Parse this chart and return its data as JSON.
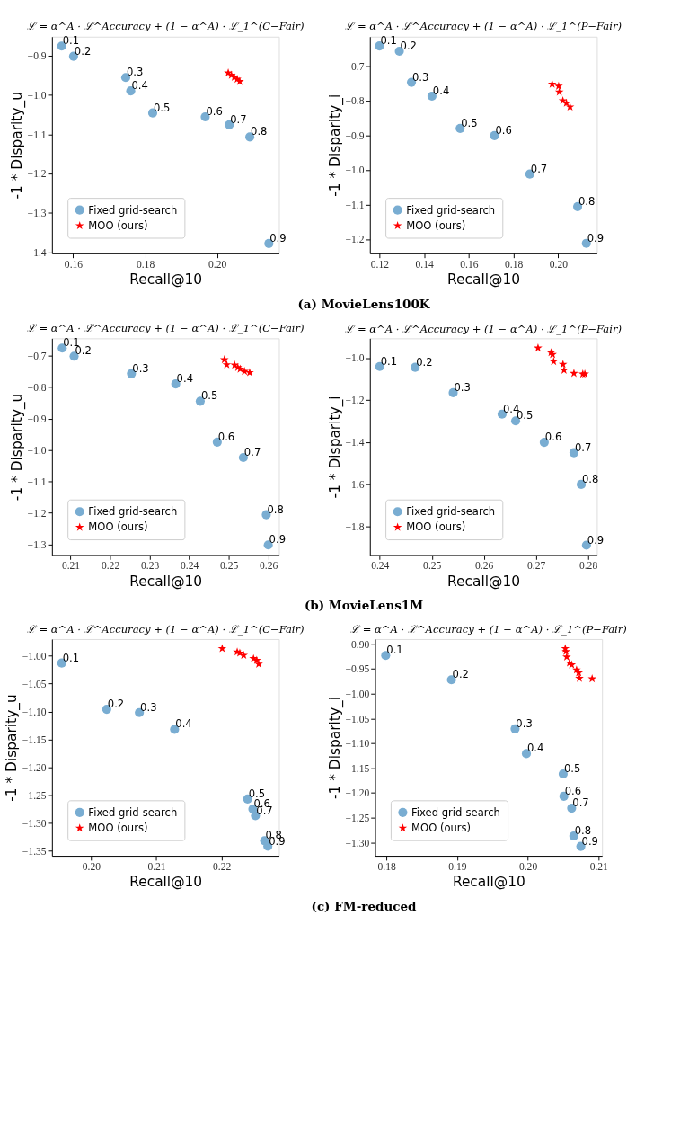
{
  "chart_data": [
    {
      "type": "scatter",
      "title": "ℒ = α^A · ℒ^Accuracy + (1 − α^A) · ℒ_1^(C−Fair)",
      "xlabel": "Recall@10",
      "ylabel": "-1 * Disparity_u",
      "legend": "bottom left",
      "grid": false,
      "xlim": [
        0.1541,
        0.2172
      ],
      "ylim": [
        -1.403,
        -0.852
      ],
      "xticks": [
        {
          "value": 0.16,
          "label": "0.16"
        },
        {
          "value": 0.18,
          "label": "0.18"
        },
        {
          "value": 0.2,
          "label": "0.20"
        }
      ],
      "yticks": [
        {
          "value": -0.9,
          "label": "−0.9"
        },
        {
          "value": -1.0,
          "label": "−1.0"
        },
        {
          "value": -1.1,
          "label": "−1.1"
        },
        {
          "value": -1.2,
          "label": "−1.2"
        },
        {
          "value": -1.3,
          "label": "−1.3"
        },
        {
          "value": -1.4,
          "label": "−1.4"
        }
      ],
      "series": [
        {
          "name": "Fixed grid-search",
          "color": "#79add2",
          "marker": "circle",
          "x": [
            0.1568,
            0.1601,
            0.1746,
            0.176,
            0.1821,
            0.1967,
            0.2034,
            0.2091,
            0.2144
          ],
          "values": [
            -0.876,
            -0.902,
            -0.956,
            -0.99,
            -1.046,
            -1.056,
            -1.076,
            -1.107,
            -1.378
          ]
        },
        {
          "name": "MOO (ours)",
          "color": "#ff0000",
          "marker": "star",
          "x": [
            0.2031,
            0.204,
            0.2048,
            0.2056,
            0.2063
          ],
          "values": [
            -0.944,
            -0.95,
            -0.955,
            -0.96,
            -0.966
          ]
        }
      ],
      "annotations": [
        {
          "text": "0.1",
          "x": 0.1568,
          "y": -0.876
        },
        {
          "text": "0.2",
          "x": 0.1601,
          "y": -0.902
        },
        {
          "text": "0.3",
          "x": 0.1746,
          "y": -0.956
        },
        {
          "text": "0.4",
          "x": 0.176,
          "y": -0.99
        },
        {
          "text": "0.5",
          "x": 0.1821,
          "y": -1.046
        },
        {
          "text": "0.6",
          "x": 0.1967,
          "y": -1.056
        },
        {
          "text": "0.7",
          "x": 0.2034,
          "y": -1.076
        },
        {
          "text": "0.8",
          "x": 0.2091,
          "y": -1.107
        },
        {
          "text": "0.9",
          "x": 0.2144,
          "y": -1.378
        },
        "(a) MovieLens100K"
      ]
    },
    {
      "type": "scatter",
      "title": "ℒ = α^A · ℒ^Accuracy + (1 − α^A) · ℒ_1^(P−Fair)",
      "xlabel": "Recall@10",
      "ylabel": "-1 * Disparity_i",
      "legend": "bottom left",
      "grid": false,
      "xlim": [
        0.1157,
        0.2173
      ],
      "ylim": [
        -1.241,
        -0.615
      ],
      "xticks": [
        {
          "value": 0.12,
          "label": "0.12"
        },
        {
          "value": 0.14,
          "label": "0.14"
        },
        {
          "value": 0.16,
          "label": "0.16"
        },
        {
          "value": 0.18,
          "label": "0.18"
        },
        {
          "value": 0.2,
          "label": "0.20"
        }
      ],
      "yticks": [
        {
          "value": -0.7,
          "label": "−0.7"
        },
        {
          "value": -0.8,
          "label": "−0.8"
        },
        {
          "value": -0.9,
          "label": "−0.9"
        },
        {
          "value": -1.0,
          "label": "−1.0"
        },
        {
          "value": -1.1,
          "label": "−1.1"
        },
        {
          "value": -1.2,
          "label": "−1.2"
        }
      ],
      "series": [
        {
          "name": "Fixed grid-search",
          "color": "#79add2",
          "marker": "circle",
          "x": [
            0.12,
            0.1289,
            0.1343,
            0.1435,
            0.1561,
            0.1715,
            0.1873,
            0.2087,
            0.2126
          ],
          "values": [
            -0.642,
            -0.657,
            -0.747,
            -0.787,
            -0.88,
            -0.901,
            -1.012,
            -1.106,
            -1.212
          ]
        },
        {
          "name": "MOO (ours)",
          "color": "#ff0000",
          "marker": "star",
          "x": [
            0.1973,
            0.2002,
            0.2005,
            0.2021,
            0.2037,
            0.2053
          ],
          "values": [
            -0.752,
            -0.758,
            -0.775,
            -0.8,
            -0.807,
            -0.818
          ]
        }
      ],
      "annotations": [
        {
          "text": "0.1",
          "x": 0.12,
          "y": -0.642
        },
        {
          "text": "0.2",
          "x": 0.1289,
          "y": -0.657
        },
        {
          "text": "0.3",
          "x": 0.1343,
          "y": -0.747
        },
        {
          "text": "0.4",
          "x": 0.1435,
          "y": -0.787
        },
        {
          "text": "0.5",
          "x": 0.1561,
          "y": -0.88
        },
        {
          "text": "0.6",
          "x": 0.1715,
          "y": -0.901
        },
        {
          "text": "0.7",
          "x": 0.1873,
          "y": -1.012
        },
        {
          "text": "0.8",
          "x": 0.2087,
          "y": -1.106
        },
        {
          "text": "0.9",
          "x": 0.2126,
          "y": -1.212
        }
      ]
    },
    {
      "type": "scatter",
      "title": "ℒ = α^A · ℒ^Accuracy + (1 − α^A) · ℒ_1^(C−Fair)",
      "xlabel": "Recall@10",
      "ylabel": "-1 * Disparity_u",
      "legend": "bottom left",
      "grid": false,
      "xlim": [
        0.2053,
        0.2627
      ],
      "ylim": [
        -1.334,
        -0.645
      ],
      "xticks": [
        {
          "value": 0.21,
          "label": "0.21"
        },
        {
          "value": 0.22,
          "label": "0.22"
        },
        {
          "value": 0.23,
          "label": "0.23"
        },
        {
          "value": 0.24,
          "label": "0.24"
        },
        {
          "value": 0.25,
          "label": "0.25"
        },
        {
          "value": 0.26,
          "label": "0.26"
        }
      ],
      "yticks": [
        {
          "value": -0.7,
          "label": "−0.7"
        },
        {
          "value": -0.8,
          "label": "−0.8"
        },
        {
          "value": -0.9,
          "label": "−0.9"
        },
        {
          "value": -1.0,
          "label": "−1.0"
        },
        {
          "value": -1.1,
          "label": "−1.1"
        },
        {
          "value": -1.2,
          "label": "−1.2"
        },
        {
          "value": -1.3,
          "label": "−1.3"
        }
      ],
      "series": [
        {
          "name": "Fixed grid-search",
          "color": "#79add2",
          "marker": "circle",
          "x": [
            0.2079,
            0.2109,
            0.2254,
            0.2366,
            0.2428,
            0.2471,
            0.2537,
            0.2595,
            0.26
          ],
          "values": [
            -0.676,
            -0.702,
            -0.757,
            -0.79,
            -0.845,
            -0.975,
            -1.024,
            -1.206,
            -1.302
          ]
        },
        {
          "name": "MOO (ours)",
          "color": "#ff0000",
          "marker": "star",
          "x": [
            0.2489,
            0.2495,
            0.2515,
            0.2523,
            0.2529,
            0.254,
            0.2553
          ],
          "values": [
            -0.713,
            -0.729,
            -0.73,
            -0.738,
            -0.743,
            -0.75,
            -0.754
          ]
        }
      ],
      "annotations": [
        {
          "text": "0.1",
          "x": 0.2079,
          "y": -0.676
        },
        {
          "text": "0.2",
          "x": 0.2109,
          "y": -0.702
        },
        {
          "text": "0.3",
          "x": 0.2254,
          "y": -0.757
        },
        {
          "text": "0.4",
          "x": 0.2366,
          "y": -0.79
        },
        {
          "text": "0.5",
          "x": 0.2428,
          "y": -0.845
        },
        {
          "text": "0.6",
          "x": 0.2471,
          "y": -0.975
        },
        {
          "text": "0.7",
          "x": 0.2537,
          "y": -1.024
        },
        {
          "text": "0.8",
          "x": 0.2595,
          "y": -1.206
        },
        {
          "text": "0.9",
          "x": 0.26,
          "y": -1.302
        },
        "(b) MovieLens1M"
      ]
    },
    {
      "type": "scatter",
      "title": "ℒ = α^A · ℒ^Accuracy + (1 − α^A) · ℒ_1^(P−Fair)",
      "xlabel": "Recall@10",
      "ylabel": "-1 * Disparity_i",
      "legend": "bottom left",
      "grid": false,
      "xlim": [
        0.2381,
        0.2817
      ],
      "ylim": [
        -1.938,
        -0.907
      ],
      "xticks": [
        {
          "value": 0.24,
          "label": "0.24"
        },
        {
          "value": 0.25,
          "label": "0.25"
        },
        {
          "value": 0.26,
          "label": "0.26"
        },
        {
          "value": 0.27,
          "label": "0.27"
        },
        {
          "value": 0.28,
          "label": "0.28"
        }
      ],
      "yticks": [
        {
          "value": -1.0,
          "label": "−1.0"
        },
        {
          "value": -1.2,
          "label": "−1.2"
        },
        {
          "value": -1.4,
          "label": "−1.4"
        },
        {
          "value": -1.6,
          "label": "−1.6"
        },
        {
          "value": -1.8,
          "label": "−1.8"
        }
      ],
      "series": [
        {
          "name": "Fixed grid-search",
          "color": "#79add2",
          "marker": "circle",
          "x": [
            0.24,
            0.2468,
            0.2541,
            0.2635,
            0.2661,
            0.2716,
            0.2773,
            0.2787,
            0.2797
          ],
          "values": [
            -1.041,
            -1.045,
            -1.166,
            -1.268,
            -1.3,
            -1.402,
            -1.451,
            -1.602,
            -1.891
          ]
        },
        {
          "name": "MOO (ours)",
          "color": "#ff0000",
          "marker": "star",
          "x": [
            0.2704,
            0.2729,
            0.2732,
            0.2734,
            0.2752,
            0.2754,
            0.2773,
            0.279,
            0.2794
          ],
          "values": [
            -0.953,
            -0.975,
            -0.984,
            -1.017,
            -1.031,
            -1.059,
            -1.074,
            -1.077,
            -1.077
          ]
        }
      ],
      "annotations": [
        {
          "text": "0.1",
          "x": 0.24,
          "y": -1.041
        },
        {
          "text": "0.2",
          "x": 0.2468,
          "y": -1.045
        },
        {
          "text": "0.3",
          "x": 0.2541,
          "y": -1.166
        },
        {
          "text": "0.4",
          "x": 0.2635,
          "y": -1.268
        },
        {
          "text": "0.5",
          "x": 0.2661,
          "y": -1.3
        },
        {
          "text": "0.6",
          "x": 0.2716,
          "y": -1.402
        },
        {
          "text": "0.7",
          "x": 0.2773,
          "y": -1.451
        },
        {
          "text": "0.8",
          "x": 0.2787,
          "y": -1.602
        },
        {
          "text": "0.9",
          "x": 0.2797,
          "y": -1.891
        }
      ]
    },
    {
      "type": "scatter",
      "title": "ℒ = α^A · ℒ^Accuracy + (1 − α^A) · ℒ_1^(C−Fair)",
      "xlabel": "Recall@10",
      "ylabel": "-1 * Disparity_u",
      "legend": "bottom left",
      "grid": false,
      "xlim": [
        0.194,
        0.2288
      ],
      "ylim": [
        -1.359,
        -0.97
      ],
      "xticks": [
        {
          "value": 0.2,
          "label": "0.20"
        },
        {
          "value": 0.21,
          "label": "0.21"
        },
        {
          "value": 0.22,
          "label": "0.22"
        }
      ],
      "yticks": [
        {
          "value": -1.0,
          "label": "−1.00"
        },
        {
          "value": -1.05,
          "label": "−1.05"
        },
        {
          "value": -1.1,
          "label": "−1.10"
        },
        {
          "value": -1.15,
          "label": "−1.15"
        },
        {
          "value": -1.2,
          "label": "−1.20"
        },
        {
          "value": -1.25,
          "label": "−1.25"
        },
        {
          "value": -1.3,
          "label": "−1.30"
        },
        {
          "value": -1.35,
          "label": "−1.35"
        }
      ],
      "series": [
        {
          "name": "Fixed grid-search",
          "color": "#79add2",
          "marker": "circle",
          "x": [
            0.1955,
            0.2024,
            0.2074,
            0.2128,
            0.224,
            0.2248,
            0.2252,
            0.2266,
            0.2271
          ],
          "values": [
            -1.013,
            -1.096,
            -1.102,
            -1.132,
            -1.257,
            -1.275,
            -1.287,
            -1.332,
            -1.342
          ]
        },
        {
          "name": "MOO (ours)",
          "color": "#ff0000",
          "marker": "star",
          "x": [
            0.2201,
            0.2224,
            0.2228,
            0.2234,
            0.2249,
            0.2254,
            0.2257
          ],
          "values": [
            -0.987,
            -0.993,
            -0.995,
            -0.999,
            -1.005,
            -1.008,
            -1.015
          ]
        }
      ],
      "annotations": [
        {
          "text": "0.1",
          "x": 0.1955,
          "y": -1.013
        },
        {
          "text": "0.2",
          "x": 0.2024,
          "y": -1.096
        },
        {
          "text": "0.3",
          "x": 0.2074,
          "y": -1.102
        },
        {
          "text": "0.4",
          "x": 0.2128,
          "y": -1.132
        },
        {
          "text": "0.5",
          "x": 0.224,
          "y": -1.257
        },
        {
          "text": "0.6",
          "x": 0.2248,
          "y": -1.275
        },
        {
          "text": "0.7",
          "x": 0.2252,
          "y": -1.287
        },
        {
          "text": "0.8",
          "x": 0.2266,
          "y": -1.332
        },
        {
          "text": "0.9",
          "x": 0.2271,
          "y": -1.342
        },
        "(c) FM-reduced"
      ]
    },
    {
      "type": "scatter",
      "title": "ℒ = α^A · ℒ^Accuracy + (1 − α^A) · ℒ_1^(P−Fair)",
      "xlabel": "Recall@10",
      "ylabel": "-1 * Disparity_i",
      "legend": "bottom left",
      "grid": false,
      "xlim": [
        0.1784,
        0.2105
      ],
      "ylim": [
        -1.327,
        -0.89
      ],
      "xticks": [
        {
          "value": 0.18,
          "label": "0.18"
        },
        {
          "value": 0.19,
          "label": "0.19"
        },
        {
          "value": 0.2,
          "label": "0.20"
        },
        {
          "value": 0.21,
          "label": "0.21"
        }
      ],
      "yticks": [
        {
          "value": -0.9,
          "label": "−0.90"
        },
        {
          "value": -0.95,
          "label": "−0.95"
        },
        {
          "value": -1.0,
          "label": "−1.00"
        },
        {
          "value": -1.05,
          "label": "−1.05"
        },
        {
          "value": -1.1,
          "label": "−1.10"
        },
        {
          "value": -1.15,
          "label": "−1.15"
        },
        {
          "value": -1.2,
          "label": "−1.20"
        },
        {
          "value": -1.25,
          "label": "−1.25"
        },
        {
          "value": -1.3,
          "label": "−1.30"
        }
      ],
      "series": [
        {
          "name": "Fixed grid-search",
          "color": "#79add2",
          "marker": "circle",
          "x": [
            0.1799,
            0.1892,
            0.1982,
            0.1998,
            0.205,
            0.2051,
            0.2062,
            0.2065,
            0.2075
          ],
          "values": [
            -0.923,
            -0.972,
            -1.071,
            -1.121,
            -1.162,
            -1.207,
            -1.231,
            -1.287,
            -1.308
          ]
        },
        {
          "name": "MOO (ours)",
          "color": "#ff0000",
          "marker": "star",
          "x": [
            0.2053,
            0.2054,
            0.2055,
            0.2059,
            0.2062,
            0.2069,
            0.2072,
            0.2073,
            0.2091
          ],
          "values": [
            -0.909,
            -0.915,
            -0.926,
            -0.938,
            -0.942,
            -0.952,
            -0.958,
            -0.969,
            -0.97
          ]
        }
      ],
      "annotations": [
        {
          "text": "0.1",
          "x": 0.1799,
          "y": -0.923
        },
        {
          "text": "0.2",
          "x": 0.1892,
          "y": -0.972
        },
        {
          "text": "0.3",
          "x": 0.1982,
          "y": -1.071
        },
        {
          "text": "0.4",
          "x": 0.1998,
          "y": -1.121
        },
        {
          "text": "0.5",
          "x": 0.205,
          "y": -1.162
        },
        {
          "text": "0.6",
          "x": 0.2051,
          "y": -1.207
        },
        {
          "text": "0.7",
          "x": 0.2062,
          "y": -1.231
        },
        {
          "text": "0.8",
          "x": 0.2065,
          "y": -1.287
        },
        {
          "text": "0.9",
          "x": 0.2075,
          "y": -1.308
        }
      ]
    }
  ]
}
